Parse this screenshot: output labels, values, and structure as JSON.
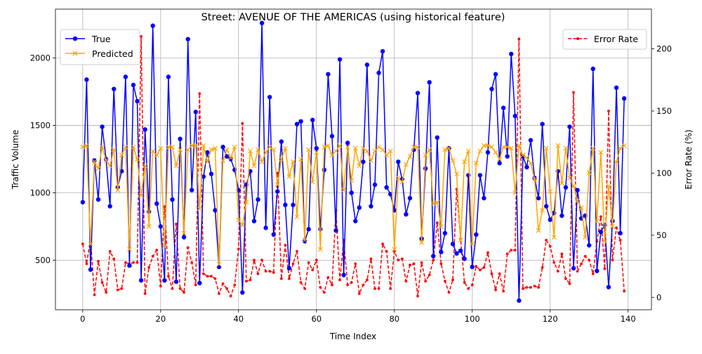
{
  "chart_data": {
    "type": "line",
    "title": "Street: AVENUE OF THE AMERICAS (using historical feature)",
    "xlabel": "Time Index",
    "ylabel": "Traffic Volume",
    "y2label": "Error Rate (%)",
    "xlim": [
      -7,
      146
    ],
    "ylim": [
      132,
      2363
    ],
    "y2lim": [
      -10,
      232
    ],
    "xticks": [
      0,
      20,
      40,
      60,
      80,
      100,
      120,
      140
    ],
    "yticks": [
      500,
      1000,
      1500,
      2000
    ],
    "y2ticks": [
      0,
      50,
      100,
      150,
      200
    ],
    "grid": true,
    "legend_left_position": "upper-left",
    "legend_right_position": "upper-right",
    "x": [
      0,
      1,
      2,
      3,
      4,
      5,
      6,
      7,
      8,
      9,
      10,
      11,
      12,
      13,
      14,
      15,
      16,
      17,
      18,
      19,
      20,
      21,
      22,
      23,
      24,
      25,
      26,
      27,
      28,
      29,
      30,
      31,
      32,
      33,
      34,
      35,
      36,
      37,
      38,
      39,
      40,
      41,
      42,
      43,
      44,
      45,
      46,
      47,
      48,
      49,
      50,
      51,
      52,
      53,
      54,
      55,
      56,
      57,
      58,
      59,
      60,
      61,
      62,
      63,
      64,
      65,
      66,
      67,
      68,
      69,
      70,
      71,
      72,
      73,
      74,
      75,
      76,
      77,
      78,
      79,
      80,
      81,
      82,
      83,
      84,
      85,
      86,
      87,
      88,
      89,
      90,
      91,
      92,
      93,
      94,
      95,
      96,
      97,
      98,
      99,
      100,
      101,
      102,
      103,
      104,
      105,
      106,
      107,
      108,
      109,
      110,
      111,
      112,
      113,
      114,
      115,
      116,
      117,
      118,
      119,
      120,
      121,
      122,
      123,
      124,
      125,
      126,
      127,
      128,
      129,
      130,
      131,
      132,
      133,
      134,
      135,
      136,
      137,
      138,
      139
    ],
    "series": [
      {
        "name": "True",
        "color": "#0000ff",
        "axis": "left",
        "marker": "o",
        "values": [
          930,
          1840,
          430,
          1240,
          950,
          1490,
          1250,
          900,
          1770,
          1040,
          1160,
          1860,
          460,
          1800,
          1680,
          350,
          1470,
          860,
          2240,
          920,
          750,
          350,
          1860,
          950,
          340,
          1400,
          670,
          2140,
          1020,
          1600,
          330,
          1120,
          1300,
          1140,
          870,
          450,
          1340,
          1270,
          1250,
          1170,
          1020,
          260,
          1060,
          1160,
          790,
          950,
          2260,
          740,
          1710,
          690,
          1010,
          1380,
          910,
          440,
          910,
          1510,
          1530,
          640,
          730,
          1540,
          1330,
          730,
          1170,
          1880,
          1420,
          720,
          1990,
          390,
          1370,
          1000,
          790,
          890,
          1230,
          1950,
          900,
          1060,
          1890,
          2050,
          1040,
          990,
          870,
          1230,
          1100,
          840,
          960,
          1320,
          1740,
          660,
          1180,
          1820,
          530,
          1410,
          560,
          700,
          1330,
          620,
          550,
          570,
          510,
          1130,
          450,
          690,
          1130,
          960,
          1300,
          1770,
          1880,
          1220,
          1630,
          1270,
          2030,
          1570,
          200,
          1270,
          1190,
          1390,
          1110,
          960,
          1510,
          900,
          800,
          850,
          1160,
          830,
          1040,
          1490,
          440,
          1020,
          810,
          830,
          610,
          1920,
          420,
          710,
          760,
          300,
          790,
          1780,
          700,
          1700
        ]
      },
      {
        "name": "Predicted",
        "color": "#ffa500",
        "axis": "left",
        "marker": "x",
        "values": [
          1340,
          1350,
          620,
          1230,
          1180,
          1340,
          1240,
          1200,
          1320,
          1020,
          1280,
          1340,
          580,
          1340,
          1250,
          980,
          1200,
          750,
          1310,
          1280,
          1330,
          600,
          1340,
          1340,
          1200,
          1320,
          700,
          1320,
          1350,
          1350,
          880,
          1350,
          1230,
          1320,
          1330,
          470,
          1240,
          1320,
          1260,
          1340,
          800,
          760,
          930,
          1310,
          1200,
          1320,
          1230,
          1300,
          1340,
          1320,
          1060,
          1250,
          1330,
          1120,
          1230,
          820,
          1250,
          650,
          1320,
          1080,
          1300,
          580,
          1340,
          1350,
          1280,
          1310,
          1350,
          1020,
          1340,
          1090,
          1330,
          1200,
          1330,
          1310,
          1240,
          1310,
          1340,
          1320,
          1280,
          1310,
          580,
          1110,
          1080,
          1210,
          1270,
          1340,
          1340,
          630,
          1280,
          1320,
          920,
          930,
          750,
          1320,
          1330,
          1240,
          1140,
          650,
          1230,
          1310,
          620,
          1220,
          1310,
          1350,
          1350,
          1340,
          1300,
          1250,
          1340,
          1340,
          1330,
          1000,
          1350,
          1280,
          1260,
          1220,
          1100,
          720,
          870,
          1330,
          1010,
          670,
          1350,
          1070,
          1330,
          1110,
          1050,
          940,
          890,
          670,
          1150,
          1330,
          790,
          1300,
          640,
          1050,
          750,
          1230,
          1330,
          1350
        ]
      },
      {
        "name": "Error Rate",
        "color": "#ff0000",
        "axis": "right",
        "marker": ".",
        "dashed": true,
        "values": [
          43,
          27,
          47,
          2,
          29,
          12,
          4,
          37,
          31,
          6,
          7,
          28,
          27,
          28,
          28,
          210,
          3,
          24,
          33,
          38,
          9,
          73,
          17,
          7,
          59,
          7,
          4,
          40,
          28,
          10,
          164,
          19,
          17,
          17,
          15,
          3,
          11,
          7,
          1,
          10,
          39,
          140,
          13,
          14,
          30,
          19,
          30,
          21,
          21,
          20,
          100,
          15,
          42,
          15,
          27,
          37,
          12,
          7,
          28,
          22,
          30,
          8,
          4,
          16,
          10,
          70,
          14,
          46,
          10,
          12,
          27,
          3,
          10,
          14,
          31,
          7,
          7,
          43,
          37,
          7,
          37,
          30,
          31,
          13,
          26,
          27,
          1,
          28,
          13,
          18,
          30,
          60,
          27,
          13,
          4,
          14,
          87,
          47,
          12,
          7,
          10,
          25,
          22,
          24,
          36,
          19,
          6,
          19,
          5,
          35,
          38,
          38,
          208,
          7,
          8,
          8,
          9,
          8,
          24,
          46,
          41,
          28,
          21,
          35,
          15,
          11,
          165,
          21,
          27,
          33,
          30,
          19,
          45,
          65,
          23,
          150,
          30,
          56,
          46,
          5
        ]
      }
    ]
  }
}
